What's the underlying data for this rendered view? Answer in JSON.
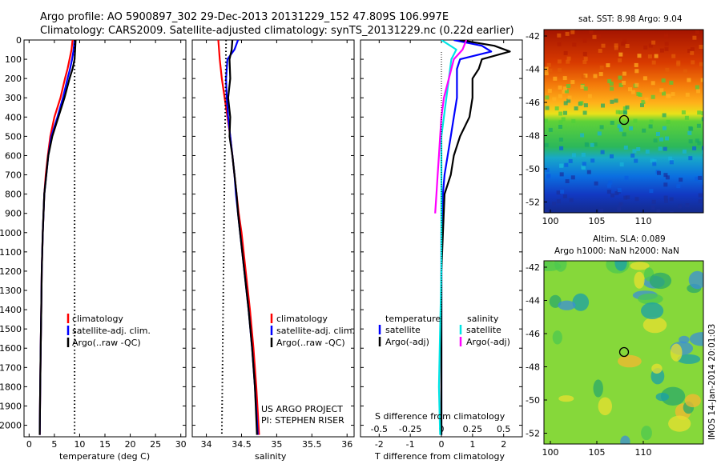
{
  "header": {
    "line1": "Argo profile: AO 5900897_302 29-Dec-2013 20131229_152 47.809S 106.997E",
    "line2": "Climatology: CARS2009. Satellite-adjusted climatology: synTS_20131229.nc (0.22d earlier)"
  },
  "colors": {
    "climatology": "#ff0000",
    "satellite": "#0000ff",
    "argo": "#000000",
    "salinity_satellite": "#00e5e5",
    "salinity_argo": "#ff00ff"
  },
  "depth_ticks": [
    0,
    100,
    200,
    300,
    400,
    500,
    600,
    700,
    800,
    900,
    1000,
    1100,
    1200,
    1300,
    1400,
    1500,
    1600,
    1700,
    1800,
    1900,
    2000
  ],
  "panels": {
    "temperature": {
      "xlabel": "temperature (deg C)",
      "legend": [
        "climatology",
        "satellite-adj. clim.",
        "Argo(..raw -QC)"
      ]
    },
    "salinity": {
      "xlabel": "salinity",
      "legend": [
        "climatology",
        "satellite-adj. clim.",
        "Argo(..raw -QC)"
      ],
      "credit1": "US ARGO PROJECT",
      "credit2": "PI: STEPHEN RISER"
    },
    "difference": {
      "xlabel": "T difference from climatology",
      "slabel": "S difference from climatology",
      "legend_head_t": "temperature",
      "legend_head_s": "salinity",
      "legend_t": [
        "satellite",
        "Argo(-adj)"
      ],
      "legend_s": [
        "satellite",
        "Argo(-adj)"
      ]
    },
    "sst_map": {
      "title": "sat. SST: 8.98 Argo: 9.04",
      "lat_ticks": [
        "-42",
        "-44",
        "-46",
        "-48",
        "-50",
        "-52"
      ],
      "lon_ticks": [
        "100",
        "105",
        "110"
      ]
    },
    "sla_map": {
      "title1": "Altim. SLA: 0.089",
      "title2": "Argo h1000: NaN h2000: NaN",
      "lat_ticks": [
        "-42",
        "-44",
        "-46",
        "-48",
        "-50",
        "-52"
      ],
      "lon_ticks": [
        "100",
        "105",
        "110"
      ],
      "stamp": "IMOS 14-Jan-2014 20:01:03"
    }
  },
  "chart_data": [
    {
      "type": "line",
      "title": "",
      "xlabel": "temperature (deg C)",
      "ylabel": "",
      "xlim": [
        -1,
        31
      ],
      "ylim": [
        2060,
        0
      ],
      "x_ticks": [
        "0",
        "5",
        "10",
        "15",
        "20",
        "25",
        "30"
      ],
      "y_reversed": true,
      "series": [
        {
          "name": "climatology",
          "color": "#ff0000",
          "style": "solid",
          "depth": [
            0,
            50,
            100,
            150,
            200,
            300,
            400,
            500,
            600,
            700,
            800,
            1000,
            1200,
            1400,
            1600,
            1800,
            2050
          ],
          "values": [
            8.6,
            8.4,
            8.0,
            7.6,
            7.1,
            6.2,
            5.0,
            4.2,
            3.7,
            3.3,
            3.0,
            2.7,
            2.5,
            2.4,
            2.3,
            2.2,
            2.1
          ]
        },
        {
          "name": "satellite-adj. clim.",
          "color": "#0000ff",
          "style": "solid",
          "depth": [
            0,
            50,
            100,
            150,
            200,
            300,
            400,
            500,
            600,
            700,
            800,
            1000,
            1200,
            1400,
            1600,
            1800,
            2050
          ],
          "values": [
            9.0,
            8.8,
            8.5,
            8.1,
            7.6,
            6.7,
            5.6,
            4.4,
            3.8,
            3.4,
            3.0,
            2.7,
            2.5,
            2.4,
            2.3,
            2.2,
            2.1
          ]
        },
        {
          "name": "Argo(..raw -QC)",
          "color": "#000000",
          "style": "solid",
          "depth": [
            0,
            50,
            100,
            150,
            200,
            300,
            400,
            500,
            600,
            700,
            800,
            1000,
            1200,
            1400,
            1600,
            1800,
            2050
          ],
          "values": [
            9.2,
            9.1,
            9.0,
            8.6,
            8.0,
            7.0,
            5.8,
            4.6,
            3.8,
            3.4,
            3.0,
            2.7,
            2.5,
            2.4,
            2.3,
            2.2,
            2.1
          ]
        },
        {
          "name": "",
          "color": "#000000",
          "style": "dotted",
          "depth": [
            0,
            2050
          ],
          "values": [
            9.0,
            9.0
          ]
        }
      ]
    },
    {
      "type": "line",
      "title": "",
      "xlabel": "salinity",
      "ylabel": "",
      "xlim": [
        33.8,
        36.1
      ],
      "ylim": [
        2060,
        0
      ],
      "x_ticks": [
        "34",
        "34.5",
        "35",
        "35.5",
        "36"
      ],
      "y_reversed": true,
      "series": [
        {
          "name": "climatology",
          "color": "#ff0000",
          "style": "solid",
          "depth": [
            0,
            50,
            100,
            200,
            300,
            400,
            500,
            600,
            700,
            800,
            900,
            1000,
            1200,
            1400,
            1600,
            1800,
            2050
          ],
          "values": [
            34.17,
            34.18,
            34.19,
            34.22,
            34.26,
            34.3,
            34.34,
            34.37,
            34.4,
            34.43,
            34.46,
            34.5,
            34.56,
            34.62,
            34.67,
            34.71,
            34.75
          ]
        },
        {
          "name": "satellite-adj. clim.",
          "color": "#0000ff",
          "style": "solid",
          "depth": [
            0,
            50,
            100,
            200,
            300,
            400,
            500,
            600,
            700,
            800,
            900,
            1000,
            1200,
            1400,
            1600,
            1800,
            2050
          ],
          "values": [
            34.45,
            34.4,
            34.3,
            34.28,
            34.29,
            34.31,
            34.34,
            34.37,
            34.4,
            34.42,
            34.45,
            34.48,
            34.54,
            34.6,
            34.65,
            34.69,
            34.73
          ]
        },
        {
          "name": "Argo(..raw -QC)",
          "color": "#000000",
          "style": "solid",
          "depth": [
            0,
            50,
            100,
            200,
            300,
            400,
            500,
            600,
            700,
            800,
            900,
            1000,
            1200,
            1400,
            1600,
            1800,
            2050
          ],
          "values": [
            34.37,
            34.36,
            34.33,
            34.34,
            34.31,
            34.34,
            34.33,
            34.37,
            34.4,
            34.43,
            34.45,
            34.48,
            34.54,
            34.6,
            34.65,
            34.69,
            34.72
          ]
        },
        {
          "name": "",
          "color": "#000000",
          "style": "dotted",
          "depth": [
            0,
            1000,
            2050
          ],
          "values": [
            34.28,
            34.25,
            34.22
          ]
        }
      ]
    },
    {
      "type": "line",
      "title": "",
      "xlabel": "T difference from climatology",
      "x2label": "S difference from climatology",
      "xlim": [
        -2.6,
        2.6
      ],
      "x_ticks": [
        "-2",
        "-1",
        "0",
        "1",
        "2"
      ],
      "x2_ticks": [
        "-0.5",
        "-0.25",
        "0",
        "0.25",
        "0.5"
      ],
      "ylim": [
        2060,
        0
      ],
      "y_reversed": true,
      "series": [
        {
          "name": "satellite",
          "group": "temperature",
          "color": "#0000ff",
          "style": "solid",
          "depth": [
            0,
            30,
            60,
            100,
            150,
            200,
            300,
            400,
            500,
            600,
            700,
            800,
            1000,
            1200,
            1500,
            1800,
            2050
          ],
          "values": [
            0.4,
            1.3,
            1.6,
            0.6,
            0.5,
            0.5,
            0.5,
            0.4,
            0.3,
            0.2,
            0.1,
            0.05,
            0.0,
            0.0,
            0.0,
            0.0,
            0.0
          ]
        },
        {
          "name": "Argo(-adj)",
          "group": "temperature",
          "color": "#000000",
          "style": "solid",
          "depth": [
            0,
            30,
            60,
            100,
            150,
            200,
            300,
            400,
            500,
            600,
            700,
            800,
            1000,
            1200,
            1500,
            1800,
            2050
          ],
          "values": [
            0.6,
            1.7,
            2.2,
            1.3,
            1.2,
            1.0,
            1.0,
            0.9,
            0.6,
            0.4,
            0.3,
            0.1,
            0.05,
            0.0,
            0.0,
            0.0,
            0.0
          ]
        },
        {
          "name": "satellite",
          "group": "salinity",
          "color": "#00e5e5",
          "style": "solid",
          "depth": [
            0,
            50,
            100,
            200,
            300,
            400,
            500,
            700,
            900,
            1200,
            1500,
            1800,
            2050
          ],
          "values": [
            0.0,
            0.12,
            0.08,
            0.06,
            0.04,
            0.02,
            0.0,
            0.0,
            0.0,
            0.0,
            -0.01,
            -0.02,
            -0.01
          ]
        },
        {
          "name": "Argo(-adj)",
          "group": "salinity",
          "color": "#ff00ff",
          "style": "solid",
          "depth": [
            0,
            50,
            100,
            200,
            300,
            400,
            500,
            600,
            700,
            800,
            900
          ],
          "values": [
            0.2,
            0.17,
            0.1,
            0.06,
            0.02,
            0.0,
            -0.01,
            -0.02,
            -0.03,
            -0.04,
            -0.05
          ]
        }
      ]
    }
  ]
}
